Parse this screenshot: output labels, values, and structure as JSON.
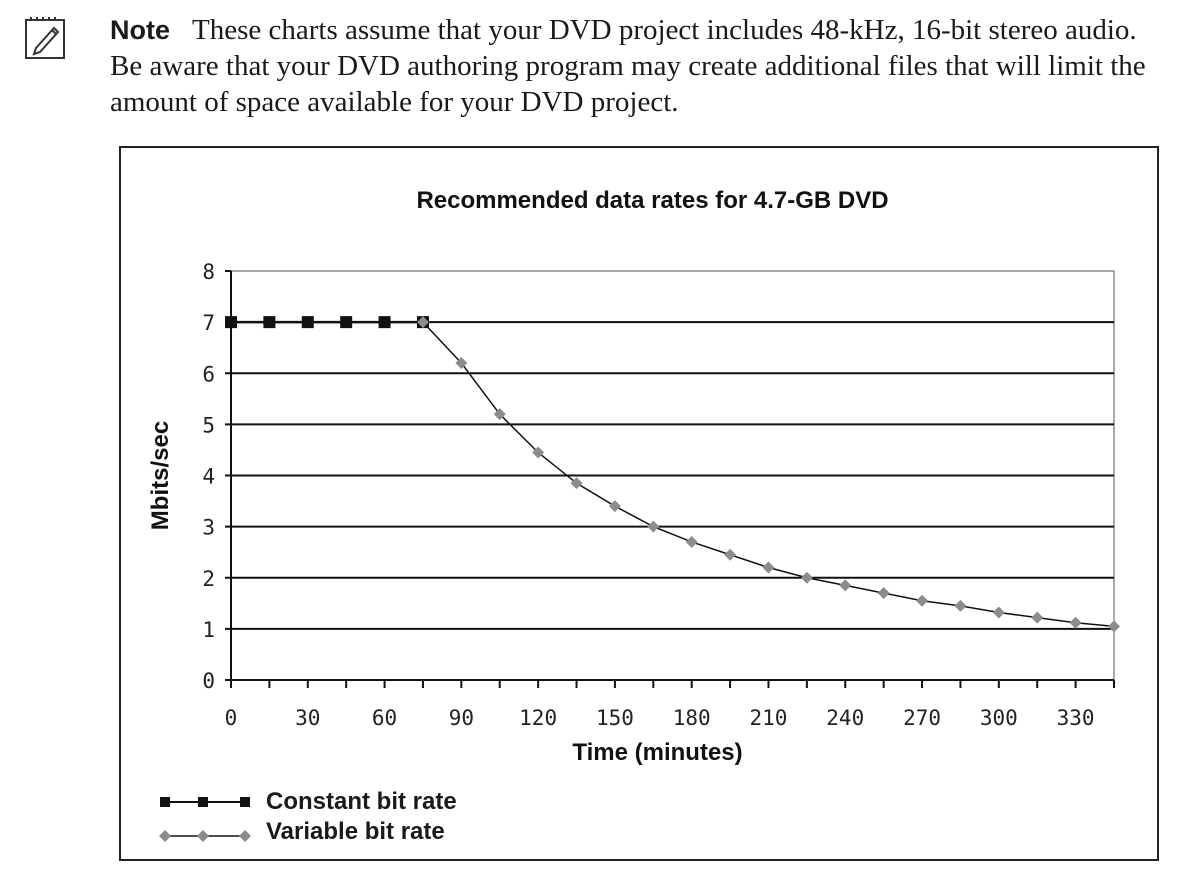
{
  "note": {
    "icon": "notepad-pencil-icon",
    "label": "Note",
    "text": "These charts assume that your DVD project includes 48-kHz, 16-bit stereo audio. Be aware that your DVD authoring program may create additional files that will limit the amount of space available for your DVD project."
  },
  "colors": {
    "constant": "#111111",
    "variable": "#8c8c8c",
    "grid": "#111111"
  },
  "chart_data": {
    "type": "line",
    "title": "Recommended data rates for 4.7-GB DVD",
    "xlabel": "Time (minutes)",
    "ylabel": "Mbits/sec",
    "xlim": [
      0,
      345
    ],
    "ylim": [
      0,
      8
    ],
    "x_ticks": [
      0,
      30,
      60,
      90,
      120,
      150,
      180,
      210,
      240,
      270,
      300,
      330
    ],
    "y_ticks": [
      0,
      1,
      2,
      3,
      4,
      5,
      6,
      7,
      8
    ],
    "grid": true,
    "legend_position": "bottom-left",
    "series": [
      {
        "name": "Constant bit rate",
        "marker": "square",
        "x": [
          0,
          15,
          30,
          45,
          60,
          75
        ],
        "values": [
          7,
          7,
          7,
          7,
          7,
          7
        ]
      },
      {
        "name": "Variable bit rate",
        "marker": "diamond",
        "x": [
          75,
          90,
          105,
          120,
          135,
          150,
          165,
          180,
          195,
          210,
          225,
          240,
          255,
          270,
          285,
          300,
          315,
          330,
          345
        ],
        "values": [
          7.0,
          6.2,
          5.2,
          4.45,
          3.85,
          3.4,
          3.0,
          2.7,
          2.45,
          2.2,
          2.0,
          1.85,
          1.7,
          1.55,
          1.45,
          1.32,
          1.22,
          1.12,
          1.05
        ]
      }
    ]
  }
}
